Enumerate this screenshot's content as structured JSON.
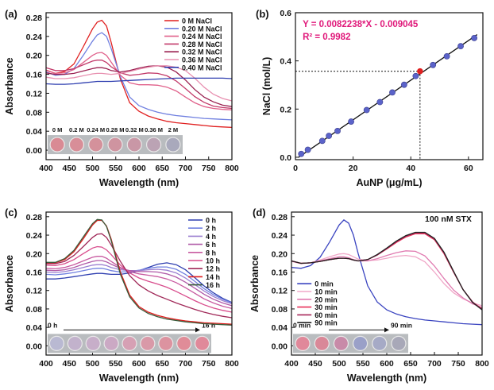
{
  "figure": {
    "panel_labels": [
      "(a)",
      "(b)",
      "(c)",
      "(d)"
    ]
  },
  "chart_data": [
    {
      "panel": "(a)",
      "type": "line",
      "xlabel": "Wavelength (nm)",
      "ylabel": "Absorbance",
      "xlim": [
        400,
        800
      ],
      "ylim": [
        -0.02,
        0.29
      ],
      "xticks": [
        400,
        450,
        500,
        550,
        600,
        650,
        700,
        750,
        800
      ],
      "yticks": [
        0.0,
        0.04,
        0.08,
        0.12,
        0.16,
        0.2,
        0.24,
        0.28
      ],
      "tick_labels_y": [
        "0.00",
        "0.04",
        "0.08",
        "0.12",
        "0.16",
        "0.20",
        "0.24",
        "0.28"
      ],
      "legend_position": "top-right",
      "inset": {
        "labels": [
          "0 M",
          "0.2 M",
          "0.24 M",
          "0.28 M",
          "0.32 M",
          "0.36 M",
          "2 M"
        ],
        "well_colors": [
          "#d98a94",
          "#d88e98",
          "#d4919b",
          "#cf94a0",
          "#c997a6",
          "#bba3b4",
          "#a9a9bc"
        ]
      },
      "x": [
        400,
        420,
        440,
        460,
        480,
        500,
        510,
        520,
        530,
        540,
        560,
        580,
        600,
        620,
        640,
        660,
        680,
        700,
        720,
        740,
        760,
        780,
        800
      ],
      "series": [
        {
          "name": "0 M NaCl",
          "color": "#e01f1f",
          "values": [
            0.169,
            0.162,
            0.166,
            0.182,
            0.218,
            0.256,
            0.27,
            0.274,
            0.262,
            0.228,
            0.15,
            0.1,
            0.082,
            0.072,
            0.066,
            0.061,
            0.058,
            0.056,
            0.054,
            0.052,
            0.05,
            0.049,
            0.048
          ]
        },
        {
          "name": "0.20 M NaCl",
          "color": "#7080e0",
          "values": [
            0.165,
            0.158,
            0.16,
            0.172,
            0.2,
            0.23,
            0.243,
            0.248,
            0.24,
            0.215,
            0.155,
            0.112,
            0.094,
            0.086,
            0.08,
            0.076,
            0.073,
            0.071,
            0.069,
            0.067,
            0.066,
            0.065,
            0.064
          ]
        },
        {
          "name": "0.24 M NaCl",
          "color": "#e0608a",
          "values": [
            0.168,
            0.162,
            0.163,
            0.17,
            0.185,
            0.2,
            0.205,
            0.206,
            0.2,
            0.186,
            0.158,
            0.142,
            0.138,
            0.138,
            0.137,
            0.133,
            0.125,
            0.112,
            0.1,
            0.092,
            0.088,
            0.086,
            0.085
          ]
        },
        {
          "name": "0.28 M NaCl",
          "color": "#c23a6a",
          "values": [
            0.174,
            0.168,
            0.168,
            0.172,
            0.18,
            0.188,
            0.19,
            0.19,
            0.185,
            0.176,
            0.163,
            0.158,
            0.16,
            0.163,
            0.162,
            0.157,
            0.146,
            0.13,
            0.113,
            0.101,
            0.093,
            0.09,
            0.088
          ]
        },
        {
          "name": "0.32 M NaCl",
          "color": "#9a2050",
          "values": [
            0.163,
            0.16,
            0.16,
            0.162,
            0.167,
            0.172,
            0.174,
            0.174,
            0.172,
            0.168,
            0.165,
            0.168,
            0.173,
            0.177,
            0.178,
            0.175,
            0.165,
            0.148,
            0.128,
            0.112,
            0.102,
            0.095,
            0.092
          ]
        },
        {
          "name": "0.36 M NaCl",
          "color": "#e890b0",
          "values": [
            0.154,
            0.151,
            0.151,
            0.153,
            0.157,
            0.161,
            0.162,
            0.162,
            0.161,
            0.16,
            0.162,
            0.166,
            0.171,
            0.175,
            0.178,
            0.178,
            0.175,
            0.168,
            0.152,
            0.133,
            0.118,
            0.109,
            0.104
          ]
        },
        {
          "name": "0.40 M NaCl",
          "color": "#2f3fb0",
          "values": [
            0.14,
            0.139,
            0.139,
            0.14,
            0.142,
            0.144,
            0.145,
            0.145,
            0.145,
            0.145,
            0.146,
            0.147,
            0.148,
            0.149,
            0.15,
            0.151,
            0.152,
            0.152,
            0.152,
            0.152,
            0.152,
            0.152,
            0.151
          ]
        }
      ]
    },
    {
      "panel": "(b)",
      "type": "scatter",
      "xlabel": "AuNP (μg/mL)",
      "ylabel": "NaCl (mol/L)",
      "xlim": [
        0,
        65
      ],
      "ylim": [
        -0.01,
        0.6
      ],
      "xticks": [
        0,
        20,
        40,
        60
      ],
      "yticks": [
        0.0,
        0.2,
        0.4,
        0.6
      ],
      "tick_labels_y": [
        "0.0",
        "0.2",
        "0.4",
        "0.6"
      ],
      "equation": "Y = 0.0082238*X - 0.009045",
      "r_squared": "R² = 0.9982",
      "annotation_color": "#e0187a",
      "fit": {
        "slope": 0.0082238,
        "intercept": -0.009045,
        "x_range": [
          1,
          63
        ]
      },
      "points": {
        "x": [
          2,
          4.3,
          9.3,
          11.6,
          14.6,
          19.3,
          24.7,
          29.3,
          33.6,
          37.7,
          41.7,
          47.7,
          52.5,
          57.3,
          62.0
        ],
        "y": [
          0.014,
          0.031,
          0.068,
          0.089,
          0.109,
          0.148,
          0.196,
          0.229,
          0.269,
          0.301,
          0.337,
          0.383,
          0.419,
          0.461,
          0.495
        ],
        "color": "#5b63c9"
      },
      "highlight": {
        "x": 43.2,
        "y": 0.357,
        "color": "#e02020"
      }
    },
    {
      "panel": "(c)",
      "type": "line",
      "xlabel": "Wavelength (nm)",
      "ylabel": "Absorbance",
      "xlim": [
        400,
        800
      ],
      "ylim": [
        -0.02,
        0.29
      ],
      "xticks": [
        400,
        450,
        500,
        550,
        600,
        650,
        700,
        750,
        800
      ],
      "yticks": [
        0.0,
        0.04,
        0.08,
        0.12,
        0.16,
        0.2,
        0.24,
        0.28
      ],
      "tick_labels_y": [
        "0.00",
        "0.04",
        "0.08",
        "0.12",
        "0.16",
        "0.20",
        "0.24",
        "0.28"
      ],
      "legend_position": "top-right",
      "inset": {
        "arrow_start": "0 h",
        "arrow_end": "16 h",
        "well_colors": [
          "#b9b9d2",
          "#c2b2cc",
          "#c7aec9",
          "#cba9c4",
          "#d6a0b4",
          "#d999a8",
          "#dc93a0",
          "#e08c98",
          "#e0899a"
        ]
      },
      "x": [
        400,
        420,
        440,
        460,
        480,
        500,
        510,
        520,
        530,
        540,
        560,
        580,
        600,
        620,
        640,
        660,
        680,
        700,
        720,
        740,
        760,
        780,
        800
      ],
      "series": [
        {
          "name": "0 h",
          "color": "#2f3fb0",
          "values": [
            0.145,
            0.145,
            0.147,
            0.15,
            0.153,
            0.156,
            0.157,
            0.157,
            0.156,
            0.155,
            0.155,
            0.158,
            0.163,
            0.17,
            0.177,
            0.18,
            0.176,
            0.165,
            0.148,
            0.13,
            0.115,
            0.103,
            0.094
          ]
        },
        {
          "name": "2 h",
          "color": "#7080e0",
          "values": [
            0.155,
            0.154,
            0.156,
            0.159,
            0.163,
            0.167,
            0.168,
            0.168,
            0.166,
            0.163,
            0.16,
            0.161,
            0.164,
            0.168,
            0.171,
            0.171,
            0.166,
            0.155,
            0.14,
            0.124,
            0.111,
            0.101,
            0.093
          ]
        },
        {
          "name": "4 h",
          "color": "#9b7fd0",
          "values": [
            0.16,
            0.159,
            0.161,
            0.165,
            0.17,
            0.175,
            0.176,
            0.176,
            0.174,
            0.17,
            0.165,
            0.163,
            0.163,
            0.165,
            0.166,
            0.164,
            0.158,
            0.147,
            0.133,
            0.119,
            0.107,
            0.098,
            0.091
          ]
        },
        {
          "name": "6 h",
          "color": "#b05aa8",
          "values": [
            0.164,
            0.163,
            0.165,
            0.17,
            0.177,
            0.183,
            0.185,
            0.185,
            0.182,
            0.177,
            0.168,
            0.163,
            0.161,
            0.161,
            0.16,
            0.156,
            0.149,
            0.138,
            0.125,
            0.112,
            0.101,
            0.093,
            0.087
          ]
        },
        {
          "name": "8 h",
          "color": "#c85aa0",
          "values": [
            0.168,
            0.167,
            0.17,
            0.176,
            0.184,
            0.192,
            0.194,
            0.194,
            0.19,
            0.183,
            0.17,
            0.161,
            0.156,
            0.153,
            0.15,
            0.145,
            0.137,
            0.126,
            0.114,
            0.102,
            0.093,
            0.086,
            0.081
          ]
        },
        {
          "name": "10 h",
          "color": "#d84c8c",
          "values": [
            0.175,
            0.174,
            0.178,
            0.187,
            0.2,
            0.212,
            0.215,
            0.214,
            0.208,
            0.198,
            0.175,
            0.158,
            0.147,
            0.14,
            0.134,
            0.127,
            0.118,
            0.108,
            0.098,
            0.089,
            0.082,
            0.077,
            0.073
          ]
        },
        {
          "name": "12 h",
          "color": "#a02858",
          "values": [
            0.178,
            0.178,
            0.183,
            0.196,
            0.215,
            0.235,
            0.242,
            0.243,
            0.235,
            0.219,
            0.183,
            0.152,
            0.132,
            0.119,
            0.109,
            0.101,
            0.093,
            0.086,
            0.079,
            0.073,
            0.068,
            0.064,
            0.061
          ]
        },
        {
          "name": "14 h",
          "color": "#e01f1f",
          "values": [
            0.18,
            0.18,
            0.187,
            0.204,
            0.232,
            0.262,
            0.272,
            0.272,
            0.26,
            0.232,
            0.16,
            0.11,
            0.085,
            0.073,
            0.066,
            0.061,
            0.057,
            0.054,
            0.052,
            0.05,
            0.049,
            0.048,
            0.047
          ]
        },
        {
          "name": "16 h",
          "color": "#3a5a3a",
          "values": [
            0.181,
            0.181,
            0.189,
            0.207,
            0.236,
            0.265,
            0.274,
            0.273,
            0.259,
            0.229,
            0.155,
            0.106,
            0.082,
            0.07,
            0.063,
            0.058,
            0.055,
            0.052,
            0.05,
            0.048,
            0.047,
            0.046,
            0.045
          ]
        }
      ]
    },
    {
      "panel": "(d)",
      "type": "line",
      "title": "100 nM STX",
      "xlabel": "Wavelength (nm)",
      "ylabel": "Absorbance",
      "xlim": [
        400,
        800
      ],
      "ylim": [
        -0.02,
        0.29
      ],
      "xticks": [
        400,
        450,
        500,
        550,
        600,
        650,
        700,
        750,
        800
      ],
      "yticks": [
        0.0,
        0.04,
        0.08,
        0.12,
        0.16,
        0.2,
        0.24,
        0.28
      ],
      "tick_labels_y": [
        "0.00",
        "0.04",
        "0.08",
        "0.12",
        "0.16",
        "0.20",
        "0.24",
        "0.28"
      ],
      "legend_position": "left",
      "inset": {
        "arrow_start": "0 min",
        "arrow_end": "90 min",
        "well_colors": [
          "#e0889a",
          "#d98898",
          "#c88aa8",
          "#9aa0c8",
          "#a6aac6",
          "#a8a8b8"
        ]
      },
      "x": [
        400,
        420,
        440,
        460,
        480,
        500,
        510,
        520,
        530,
        540,
        560,
        580,
        600,
        620,
        640,
        660,
        680,
        700,
        720,
        740,
        760,
        780,
        800
      ],
      "series": [
        {
          "name": "0 min",
          "color": "#3a44c0",
          "values": [
            0.17,
            0.168,
            0.174,
            0.192,
            0.225,
            0.262,
            0.273,
            0.266,
            0.24,
            0.2,
            0.13,
            0.095,
            0.078,
            0.069,
            0.063,
            0.059,
            0.056,
            0.054,
            0.052,
            0.05,
            0.048,
            0.047,
            0.046
          ]
        },
        {
          "name": "10 min",
          "color": "#f0a8c8",
          "values": [
            0.183,
            0.178,
            0.18,
            0.186,
            0.193,
            0.199,
            0.2,
            0.198,
            0.193,
            0.188,
            0.185,
            0.186,
            0.19,
            0.194,
            0.196,
            0.193,
            0.182,
            0.16,
            0.135,
            0.115,
            0.102,
            0.093,
            0.087
          ]
        },
        {
          "name": "20 min",
          "color": "#e07ab0",
          "values": [
            0.184,
            0.179,
            0.18,
            0.184,
            0.189,
            0.193,
            0.193,
            0.191,
            0.187,
            0.184,
            0.184,
            0.189,
            0.196,
            0.202,
            0.206,
            0.205,
            0.195,
            0.173,
            0.146,
            0.121,
            0.104,
            0.091,
            0.083
          ]
        },
        {
          "name": "30 min",
          "color": "#e8305a",
          "values": [
            0.184,
            0.179,
            0.18,
            0.183,
            0.187,
            0.19,
            0.19,
            0.189,
            0.186,
            0.184,
            0.187,
            0.197,
            0.21,
            0.224,
            0.236,
            0.243,
            0.243,
            0.23,
            0.2,
            0.16,
            0.122,
            0.095,
            0.08
          ]
        },
        {
          "name": "60 min",
          "color": "#a8285a",
          "values": [
            0.184,
            0.179,
            0.18,
            0.183,
            0.187,
            0.19,
            0.19,
            0.189,
            0.186,
            0.184,
            0.187,
            0.197,
            0.211,
            0.226,
            0.238,
            0.245,
            0.245,
            0.232,
            0.202,
            0.161,
            0.122,
            0.095,
            0.079
          ]
        },
        {
          "name": "90 min",
          "color": "#222222",
          "values": [
            0.184,
            0.179,
            0.18,
            0.183,
            0.187,
            0.19,
            0.19,
            0.189,
            0.186,
            0.184,
            0.187,
            0.198,
            0.212,
            0.227,
            0.239,
            0.246,
            0.246,
            0.233,
            0.203,
            0.162,
            0.122,
            0.094,
            0.078
          ]
        }
      ]
    }
  ]
}
